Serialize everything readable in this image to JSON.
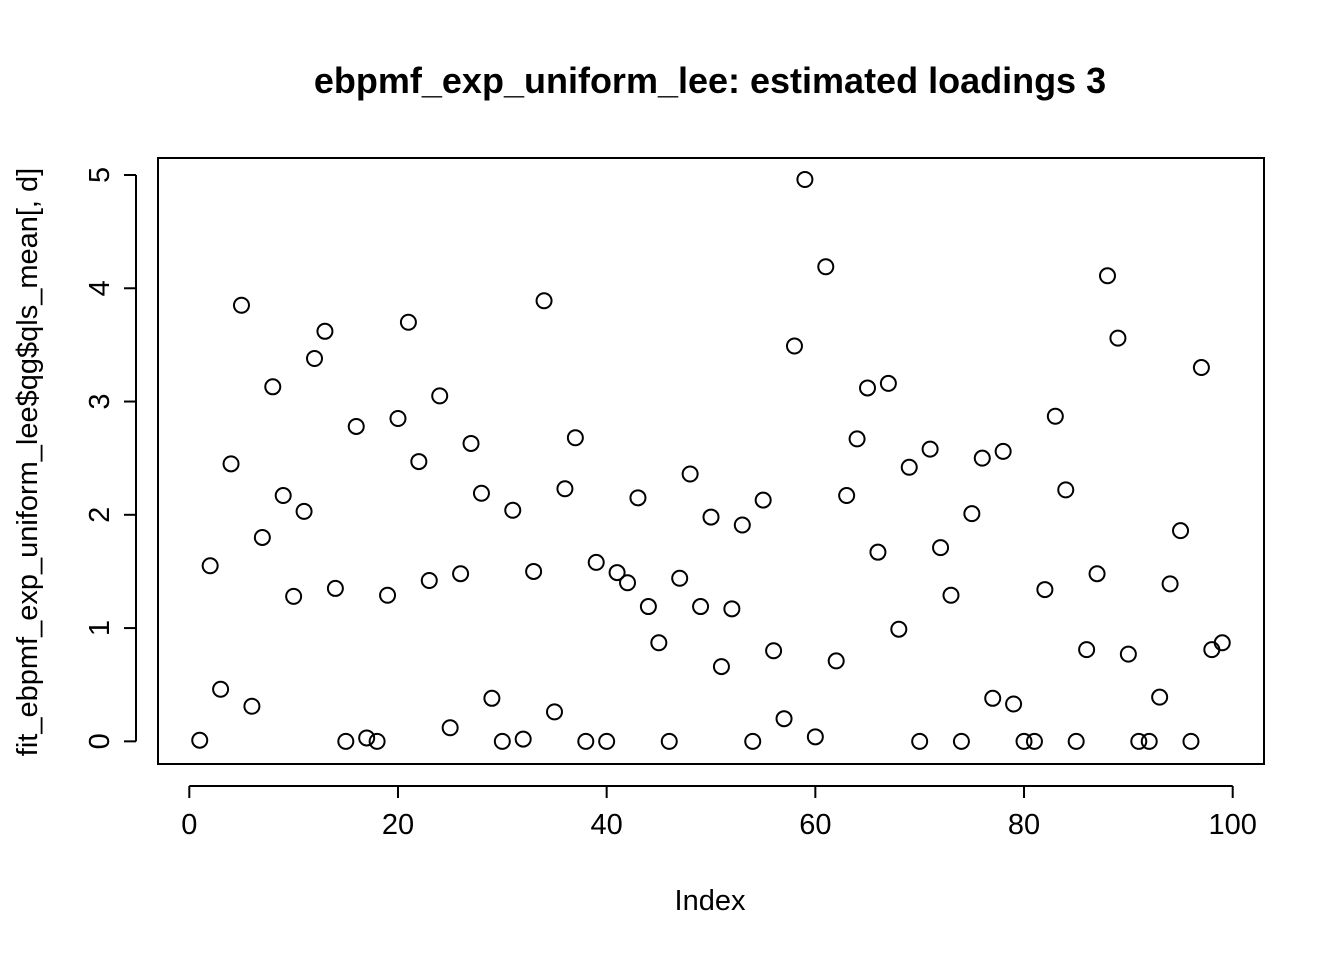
{
  "chart_data": {
    "type": "scatter",
    "title": "ebpmf_exp_uniform_lee: estimated loadings 3",
    "xlabel": "Index",
    "ylabel": "fit_ebpmf_exp_uniform_lee$qg$qls_mean[, d]",
    "xlim": [
      -3,
      103
    ],
    "ylim": [
      -0.2,
      5.15
    ],
    "x_ticks": [
      0,
      20,
      40,
      60,
      80,
      100
    ],
    "x_tick_labels": [
      "0",
      "20",
      "40",
      "60",
      "80",
      "100"
    ],
    "y_ticks": [
      0,
      1,
      2,
      3,
      4,
      5
    ],
    "y_tick_labels": [
      "0",
      "1",
      "2",
      "3",
      "4",
      "5"
    ],
    "grid": false,
    "marker": "open-circle",
    "x": [
      1,
      2,
      3,
      4,
      5,
      6,
      7,
      8,
      9,
      10,
      11,
      12,
      13,
      14,
      15,
      16,
      17,
      18,
      19,
      20,
      21,
      22,
      23,
      24,
      25,
      26,
      27,
      28,
      29,
      30,
      31,
      32,
      33,
      34,
      35,
      36,
      37,
      38,
      39,
      40,
      41,
      42,
      43,
      44,
      45,
      46,
      47,
      48,
      49,
      50,
      51,
      52,
      53,
      54,
      55,
      56,
      57,
      58,
      59,
      60,
      61,
      62,
      63,
      64,
      65,
      66,
      67,
      68,
      69,
      70,
      71,
      72,
      73,
      74,
      75,
      76,
      77,
      78,
      79,
      80,
      81,
      82,
      83,
      84,
      85,
      86,
      87,
      88,
      89,
      90,
      91,
      92,
      93,
      94,
      95,
      96,
      97,
      98,
      99
    ],
    "y": [
      0.01,
      1.55,
      0.46,
      2.45,
      3.85,
      0.31,
      1.8,
      3.13,
      2.17,
      1.28,
      2.03,
      3.38,
      3.62,
      1.35,
      0.0,
      2.78,
      0.03,
      0.0,
      1.29,
      2.85,
      3.7,
      2.47,
      1.42,
      3.05,
      0.12,
      1.48,
      2.63,
      2.19,
      0.38,
      0.0,
      2.04,
      0.02,
      1.5,
      3.89,
      0.26,
      2.23,
      2.68,
      0.0,
      1.58,
      0.0,
      1.49,
      1.4,
      2.15,
      1.19,
      0.87,
      0.0,
      1.44,
      2.36,
      1.19,
      1.98,
      0.66,
      1.17,
      1.91,
      0.0,
      2.13,
      0.8,
      0.2,
      3.49,
      4.96,
      0.04,
      4.19,
      0.71,
      2.17,
      2.67,
      3.12,
      1.67,
      3.16,
      0.99,
      2.42,
      0.0,
      2.58,
      1.71,
      1.29,
      0.0,
      2.01,
      2.5,
      0.38,
      2.56,
      0.33,
      0.0,
      0.0,
      1.34,
      2.87,
      2.22,
      0.0,
      0.81,
      1.48,
      4.11,
      3.56,
      0.77,
      0.0,
      0.0,
      0.39,
      1.39,
      1.86,
      0.0,
      3.3,
      0.81,
      0.87
    ]
  }
}
